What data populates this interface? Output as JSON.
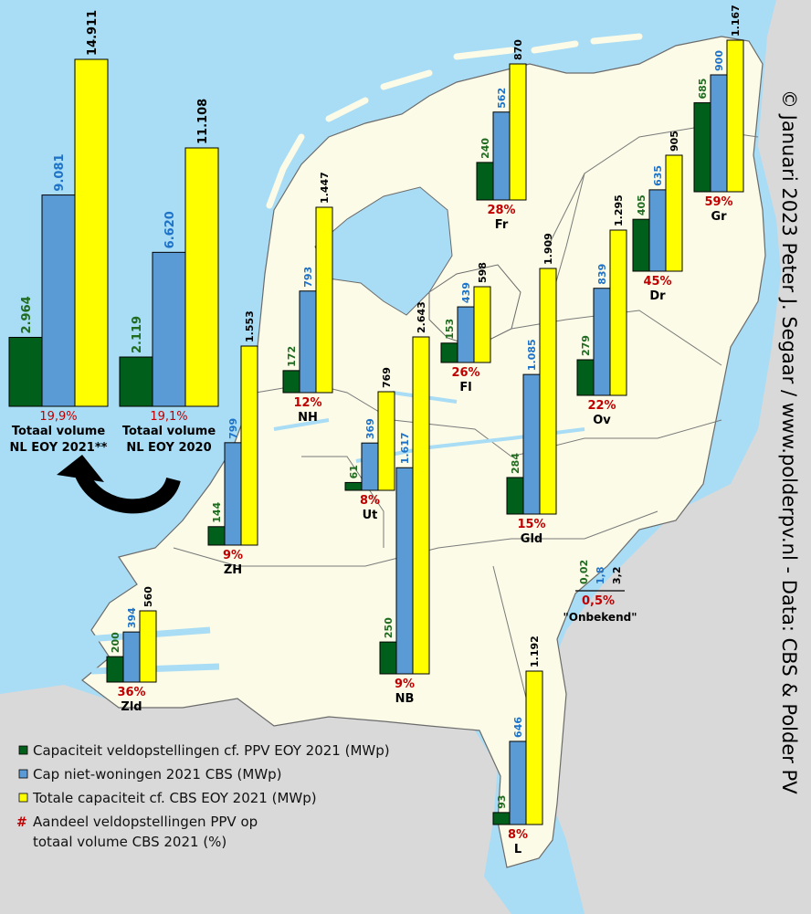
{
  "copyright": "© Januari 2023 Peter J. Segaar / www.polderpv.nl - Data: CBS & Polder PV",
  "colors": {
    "sea": "#a9dcf5",
    "land": "#fbfbe7",
    "foreign": "#d9d9d9",
    "border": "#6b6b6b",
    "green": "#005f1a",
    "blue": "#5b9bd5",
    "yellow": "#ffff00",
    "red_pct": "#c00000",
    "green_label": "#1f6b20",
    "blue_label": "#1e73c8"
  },
  "legend": [
    {
      "color": "#005f1a",
      "shape": "square",
      "text": "Capaciteit veldopstellingen cf. PPV EOY 2021 (MWp)"
    },
    {
      "color": "#5b9bd5",
      "shape": "square",
      "text": "Cap niet-woningen 2021 CBS (MWp)"
    },
    {
      "color": "#ffff00",
      "shape": "square",
      "text": "Totale capaciteit cf. CBS EOY 2021 (MWp)"
    },
    {
      "color": "#c00000",
      "shape": "hash",
      "text": "Aandeel veldopstellingen PPV op"
    },
    {
      "color": "",
      "shape": "none",
      "text": "totaal volume CBS 2021 (%)"
    }
  ],
  "onbekend": {
    "values": [
      "0,02",
      "1,8",
      "3,2"
    ],
    "pct": "0,5%",
    "name": "\"Onbekend\""
  },
  "chart_data": {
    "type": "bar",
    "series": [
      {
        "name": "Capaciteit veldopstellingen cf. PPV EOY 2021 (MWp)"
      },
      {
        "name": "Cap niet-woningen 2021 CBS (MWp)"
      },
      {
        "name": "Totale capaciteit cf. CBS EOY 2021 (MWp)"
      }
    ],
    "groups": [
      {
        "name": "Totaal volume",
        "name2": "NL EOY 2021**",
        "values": [
          2964,
          9081,
          14911
        ],
        "labels": [
          "2.964",
          "9.081",
          "14.911"
        ],
        "pct": "19,9%"
      },
      {
        "name": "Totaal volume",
        "name2": "NL EOY 2020",
        "values": [
          2119,
          6620,
          11108
        ],
        "labels": [
          "2.119",
          "6.620",
          "11.108"
        ],
        "pct": "19,1%"
      },
      {
        "name": "Gr",
        "values": [
          685,
          900,
          1167
        ],
        "labels": [
          "685",
          "900",
          "1.167"
        ],
        "pct": "59%"
      },
      {
        "name": "Fr",
        "values": [
          240,
          562,
          870
        ],
        "labels": [
          "240",
          "562",
          "870"
        ],
        "pct": "28%"
      },
      {
        "name": "Dr",
        "values": [
          405,
          635,
          905
        ],
        "labels": [
          "405",
          "635",
          "905"
        ],
        "pct": "45%"
      },
      {
        "name": "Ov",
        "values": [
          279,
          839,
          1295
        ],
        "labels": [
          "279",
          "839",
          "1.295"
        ],
        "pct": "22%"
      },
      {
        "name": "Fl",
        "values": [
          153,
          439,
          598
        ],
        "labels": [
          "153",
          "439",
          "598"
        ],
        "pct": "26%"
      },
      {
        "name": "Gld",
        "values": [
          284,
          1085,
          1909
        ],
        "labels": [
          "284",
          "1.085",
          "1.909"
        ],
        "pct": "15%"
      },
      {
        "name": "NH",
        "values": [
          172,
          793,
          1447
        ],
        "labels": [
          "172",
          "793",
          "1.447"
        ],
        "pct": "12%"
      },
      {
        "name": "Ut",
        "values": [
          61,
          369,
          769
        ],
        "labels": [
          "61",
          "369",
          "769"
        ],
        "pct": "8%"
      },
      {
        "name": "ZH",
        "values": [
          144,
          799,
          1553
        ],
        "labels": [
          "144",
          "799",
          "1.553"
        ],
        "pct": "9%"
      },
      {
        "name": "NB",
        "values": [
          250,
          1617,
          2643
        ],
        "labels": [
          "250",
          "1.617",
          "2.643"
        ],
        "pct": "9%"
      },
      {
        "name": "Zld",
        "values": [
          200,
          394,
          560
        ],
        "labels": [
          "200",
          "394",
          "560"
        ],
        "pct": "36%"
      },
      {
        "name": "L",
        "values": [
          93,
          646,
          1192
        ],
        "labels": [
          "93",
          "646",
          "1.192"
        ],
        "pct": "8%"
      }
    ]
  }
}
